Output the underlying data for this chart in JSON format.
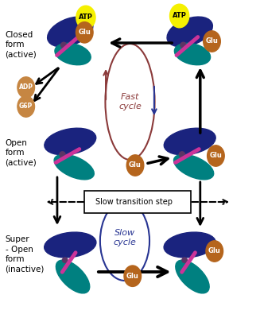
{
  "bg_color": "#ffffff",
  "dark_blue": "#1a237e",
  "teal": "#008080",
  "pink": "#cc3399",
  "purple": "#5c3566",
  "yellow": "#f5f000",
  "brown_glu": "#b5651d",
  "brown_adp": "#c68642",
  "fast_cycle_color": "#8b3a3a",
  "slow_cycle_color": "#283593",
  "labels": {
    "closed": "Closed\nform\n(active)",
    "open": "Open\nform\n(active)",
    "super_open": "Super\n- Open\nform\n(inactive)",
    "fast_cycle": "Fast\ncycle",
    "slow_cycle": "Slow\ncycle",
    "slow_transition": "Slow transition step",
    "ATP": "ATP",
    "Glu": "Glu",
    "ADP": "ADP",
    "G6P": "G6P"
  },
  "figsize": [
    3.27,
    4.0
  ],
  "dpi": 100
}
